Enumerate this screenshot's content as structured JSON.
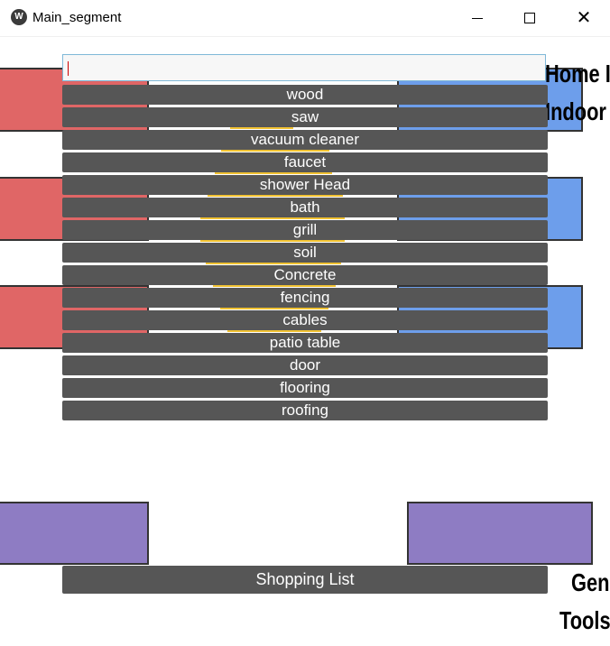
{
  "window": {
    "title": "Main_segment",
    "icon": "app-logo-icon",
    "controls": {
      "minimize": "minimize-icon",
      "maximize": "maximize-icon",
      "close": "close-icon"
    }
  },
  "background": {
    "right_labels": [
      "Home I",
      "Indoor"
    ],
    "bottom_right_labels": [
      "Gen",
      "Tools"
    ],
    "colors": {
      "red": "#e06666",
      "blue": "#6d9eeb",
      "purple": "#8e7cc3",
      "button": "#565656",
      "accent": "#f1c232"
    }
  },
  "search": {
    "value": "",
    "placeholder": ""
  },
  "suggestions": [
    "wood",
    "saw",
    "vacuum cleaner",
    "faucet",
    "shower Head",
    "bath",
    "grill",
    "soil",
    "Concrete",
    "fencing",
    "cables",
    "patio table",
    "door",
    "flooring",
    "roofing"
  ],
  "shopping_list_label": "Shopping List"
}
